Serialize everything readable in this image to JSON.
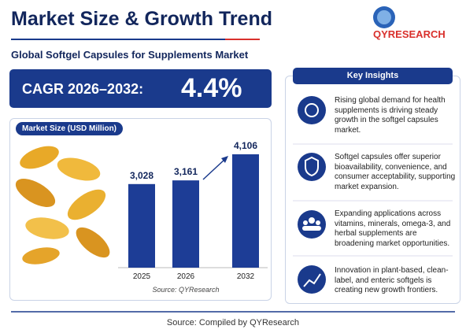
{
  "header": {
    "title": "Market Size & Growth Trend",
    "subtitle": "Global Softgel Capsules for Supplements Market",
    "logo": "QYRESEARCH"
  },
  "cagr": {
    "label": "CAGR 2026–2032:",
    "value": "4.4%"
  },
  "chart_data": {
    "type": "bar",
    "title": "Market Size (USD Million)",
    "categories": [
      "2025",
      "2026",
      "2032"
    ],
    "values": [
      3028,
      3161,
      4106
    ],
    "value_labels": [
      "3,028",
      "3,161",
      "4,106"
    ],
    "color": "#1d3d96",
    "source": "Source: QYResearch"
  },
  "insights": {
    "title": "Key Insights",
    "items": [
      "Rising global demand for health supplements is driving steady growth in the softgel capsules market.",
      "Softgel capsules offer superior bioavailability, convenience, and consumer acceptability, supporting market expansion.",
      "Expanding applications across vitamins, minerals, omega-3, and herbal supplements are broadening market opportunities.",
      "Innovation in plant-based, clean-label, and enteric softgels is creating new growth frontiers."
    ]
  },
  "footer": "Source:  Compiled by QYResearch"
}
